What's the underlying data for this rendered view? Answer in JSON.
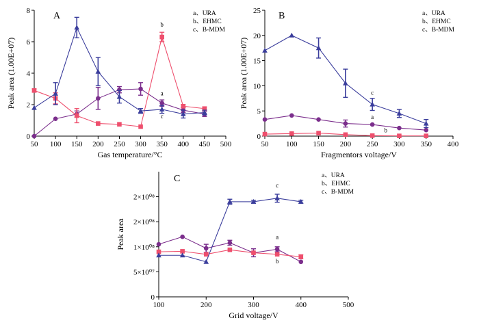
{
  "colors": {
    "URA": "#7b2e8c",
    "EHMC": "#ee4f6d",
    "B-MDM": "#3a3d9c"
  },
  "chart_data": [
    {
      "id": "A",
      "type": "line",
      "panel_label": "A",
      "xlabel": "Gas temperature/°C",
      "ylabel": "Peak area (1.00E+07)",
      "xlim": [
        50,
        500
      ],
      "ylim": [
        0,
        8
      ],
      "x_ticks": [
        50,
        100,
        150,
        200,
        250,
        300,
        350,
        400,
        450,
        500
      ],
      "y_ticks": [
        0,
        2,
        4,
        6,
        8
      ],
      "y_tick_labels": [
        "0",
        "2",
        "4",
        "6",
        "8"
      ],
      "legend": [
        "a、URA",
        "b、EHMC",
        "c、B-MDM"
      ],
      "legend_position": "top-right",
      "series": [
        {
          "name": "URA",
          "marker": "circle",
          "color": "#7b2e8c",
          "label": "a",
          "x": [
            50,
            100,
            150,
            200,
            250,
            300,
            350,
            400,
            450
          ],
          "y": [
            0.0,
            1.1,
            1.4,
            2.4,
            2.95,
            3.0,
            2.1,
            1.65,
            1.4
          ],
          "err": [
            0,
            0,
            0.2,
            0.7,
            0.2,
            0.4,
            0.2,
            0.15,
            0.15
          ]
        },
        {
          "name": "EHMC",
          "marker": "square",
          "color": "#ee4f6d",
          "label": "b",
          "x": [
            50,
            100,
            150,
            200,
            250,
            300,
            350,
            400,
            450
          ],
          "y": [
            2.9,
            2.4,
            1.3,
            0.8,
            0.75,
            0.6,
            6.3,
            1.9,
            1.75
          ],
          "err": [
            0.1,
            0.35,
            0.45,
            0,
            0,
            0,
            0.3,
            0.1,
            0.1
          ]
        },
        {
          "name": "B-MDM",
          "marker": "triangle",
          "color": "#3a3d9c",
          "label": "c",
          "x": [
            50,
            100,
            150,
            200,
            250,
            300,
            350,
            400,
            450
          ],
          "y": [
            1.8,
            2.7,
            6.9,
            4.1,
            2.5,
            1.6,
            1.7,
            1.4,
            1.5
          ],
          "err": [
            0,
            0.7,
            0.65,
            0.9,
            0.4,
            0.15,
            0.25,
            0.25,
            0.15
          ]
        }
      ]
    },
    {
      "id": "B",
      "type": "line",
      "panel_label": "B",
      "xlabel": "Fragmentors voltage/V",
      "ylabel": "Peak area (1.00E+07)",
      "xlim": [
        50,
        400
      ],
      "ylim": [
        0,
        25
      ],
      "x_ticks": [
        50,
        100,
        150,
        200,
        250,
        300,
        350,
        400
      ],
      "y_ticks": [
        0,
        5,
        10,
        15,
        20,
        25
      ],
      "y_tick_labels": [
        "0",
        "5",
        "10",
        "15",
        "20",
        "25"
      ],
      "legend": [
        "a、URA",
        "b、EHMC",
        "c、B-MDM"
      ],
      "legend_position": "top-right",
      "series": [
        {
          "name": "URA",
          "marker": "circle",
          "color": "#7b2e8c",
          "label": "a",
          "x": [
            50,
            100,
            150,
            200,
            250,
            300,
            350
          ],
          "y": [
            3.3,
            4.1,
            3.3,
            2.5,
            2.3,
            1.6,
            1.2
          ],
          "err": [
            0,
            0,
            0,
            0.7,
            0,
            0,
            0
          ]
        },
        {
          "name": "EHMC",
          "marker": "square",
          "color": "#ee4f6d",
          "label": "b",
          "x": [
            50,
            100,
            150,
            200,
            250,
            300,
            350
          ],
          "y": [
            0.4,
            0.5,
            0.6,
            0.3,
            0.1,
            0.05,
            0.05
          ],
          "err": [
            0,
            0,
            0,
            0,
            0,
            0,
            0
          ]
        },
        {
          "name": "B-MDM",
          "marker": "triangle",
          "color": "#3a3d9c",
          "label": "c",
          "x": [
            50,
            100,
            150,
            200,
            250,
            300,
            350
          ],
          "y": [
            17.0,
            20.0,
            17.5,
            10.5,
            6.3,
            4.5,
            2.5
          ],
          "err": [
            0,
            0,
            2.0,
            2.8,
            1.2,
            0.8,
            0.8
          ]
        }
      ]
    },
    {
      "id": "C",
      "type": "line",
      "panel_label": "C",
      "xlabel": "Grid voltage/V",
      "ylabel": "Peak area",
      "xlim": [
        100,
        500
      ],
      "ylim": [
        0,
        250000000
      ],
      "x_ticks": [
        100,
        200,
        300,
        400,
        500
      ],
      "y_ticks": [
        0,
        50000000,
        100000000,
        150000000,
        200000000
      ],
      "y_tick_labels": [
        "0",
        "5×10⁰⁷",
        "1×10⁰⁸",
        "2×10⁰⁸",
        "2×10⁰⁸"
      ],
      "legend": [
        "a、URA",
        "b、EHMC",
        "c、B-MDM"
      ],
      "legend_position": "top-right",
      "series": [
        {
          "name": "URA",
          "marker": "circle",
          "color": "#7b2e8c",
          "label": "a",
          "x": [
            100,
            150,
            200,
            250,
            300,
            350,
            400
          ],
          "y": [
            105000000,
            120000000,
            97000000,
            108000000,
            88000000,
            95000000,
            70000000
          ],
          "err": [
            0,
            0,
            8000000,
            5000000,
            8000000,
            5000000,
            0
          ]
        },
        {
          "name": "EHMC",
          "marker": "square",
          "color": "#ee4f6d",
          "label": "b",
          "x": [
            100,
            150,
            200,
            250,
            300,
            350,
            400
          ],
          "y": [
            90000000,
            91000000,
            85000000,
            94000000,
            88000000,
            85000000,
            80000000
          ],
          "err": [
            0,
            0,
            0,
            0,
            0,
            0,
            4000000
          ]
        },
        {
          "name": "B-MDM",
          "marker": "triangle",
          "color": "#3a3d9c",
          "label": "c",
          "x": [
            100,
            150,
            200,
            250,
            300,
            350,
            400
          ],
          "y": [
            83000000,
            83000000,
            70000000,
            190000000,
            190000000,
            197000000,
            190000000
          ],
          "err": [
            0,
            0,
            0,
            5000000,
            3000000,
            8000000,
            3000000
          ]
        }
      ]
    }
  ]
}
